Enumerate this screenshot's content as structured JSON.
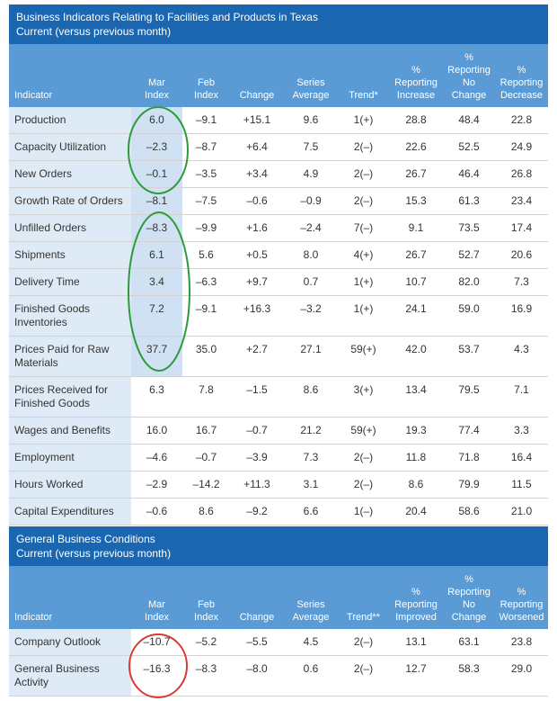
{
  "tables": [
    {
      "title": "Business Indicators Relating to Facilities and Products in Texas",
      "subtitle": "Current (versus previous month)",
      "columns": [
        [
          "Indicator"
        ],
        [
          "Mar",
          "Index"
        ],
        [
          "Feb",
          "Index"
        ],
        [
          "Change"
        ],
        [
          "Series",
          "Average"
        ],
        [
          "Trend*"
        ],
        [
          "%",
          "Reporting",
          "Increase"
        ],
        [
          "%",
          "Reporting",
          "No",
          "Change"
        ],
        [
          "%",
          "Reporting",
          "Decrease"
        ]
      ],
      "rows": [
        [
          "Production",
          "6.0",
          "–9.1",
          "+15.1",
          "9.6",
          "1(+)",
          "28.8",
          "48.4",
          "22.8"
        ],
        [
          "Capacity Utilization",
          "–2.3",
          "–8.7",
          "+6.4",
          "7.5",
          "2(–)",
          "22.6",
          "52.5",
          "24.9"
        ],
        [
          "New Orders",
          "–0.1",
          "–3.5",
          "+3.4",
          "4.9",
          "2(–)",
          "26.7",
          "46.4",
          "26.8"
        ],
        [
          "Growth Rate of Orders",
          "–8.1",
          "–7.5",
          "–0.6",
          "–0.9",
          "2(–)",
          "15.3",
          "61.3",
          "23.4"
        ],
        [
          "Unfilled Orders",
          "–8.3",
          "–9.9",
          "+1.6",
          "–2.4",
          "7(–)",
          "9.1",
          "73.5",
          "17.4"
        ],
        [
          "Shipments",
          "6.1",
          "5.6",
          "+0.5",
          "8.0",
          "4(+)",
          "26.7",
          "52.7",
          "20.6"
        ],
        [
          "Delivery Time",
          "3.4",
          "–6.3",
          "+9.7",
          "0.7",
          "1(+)",
          "10.7",
          "82.0",
          "7.3"
        ],
        [
          "Finished Goods Inventories",
          "7.2",
          "–9.1",
          "+16.3",
          "–3.2",
          "1(+)",
          "24.1",
          "59.0",
          "16.9"
        ],
        [
          "Prices Paid for Raw Materials",
          "37.7",
          "35.0",
          "+2.7",
          "27.1",
          "59(+)",
          "42.0",
          "53.7",
          "4.3"
        ],
        [
          "Prices Received for Finished Goods",
          "6.3",
          "7.8",
          "–1.5",
          "8.6",
          "3(+)",
          "13.4",
          "79.5",
          "7.1"
        ],
        [
          "Wages and Benefits",
          "16.0",
          "16.7",
          "–0.7",
          "21.2",
          "59(+)",
          "19.3",
          "77.4",
          "3.3"
        ],
        [
          "Employment",
          "–4.6",
          "–0.7",
          "–3.9",
          "7.3",
          "2(–)",
          "11.8",
          "71.8",
          "16.4"
        ],
        [
          "Hours Worked",
          "–2.9",
          "–14.2",
          "+11.3",
          "3.1",
          "2(–)",
          "8.6",
          "79.9",
          "11.5"
        ],
        [
          "Capital Expenditures",
          "–0.6",
          "8.6",
          "–9.2",
          "6.6",
          "1(–)",
          "20.4",
          "58.6",
          "21.0"
        ]
      ]
    },
    {
      "title": "General Business Conditions",
      "subtitle": "Current (versus previous month)",
      "columns": [
        [
          "Indicator"
        ],
        [
          "Mar",
          "Index"
        ],
        [
          "Feb",
          "Index"
        ],
        [
          "Change"
        ],
        [
          "Series",
          "Average"
        ],
        [
          "Trend**"
        ],
        [
          "%",
          "Reporting",
          "Improved"
        ],
        [
          "%",
          "Reporting",
          "No",
          "Change"
        ],
        [
          "%",
          "Reporting",
          "Worsened"
        ]
      ],
      "rows": [
        [
          "Company Outlook",
          "–10.7",
          "–5.2",
          "–5.5",
          "4.5",
          "2(–)",
          "13.1",
          "63.1",
          "23.8"
        ],
        [
          "General Business Activity",
          "–16.3",
          "–8.3",
          "–8.0",
          "0.6",
          "2(–)",
          "12.7",
          "58.3",
          "29.0"
        ]
      ]
    }
  ]
}
